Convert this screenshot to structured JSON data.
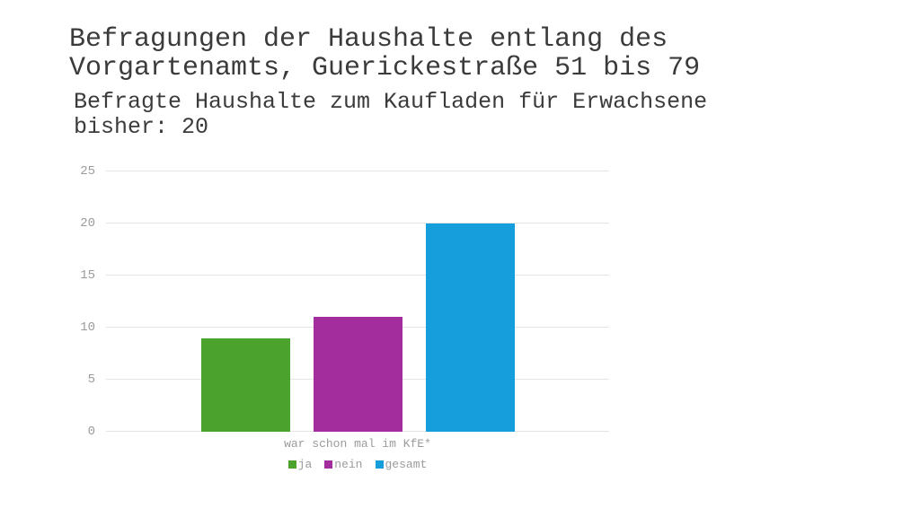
{
  "slide": {
    "title_lines": [
      "Befragungen der Haushalte entlang des",
      "Vorgartenamts, Guerickestraße 51 bis 79"
    ],
    "subtitle_lines": [
      "Befragte Haushalte zum Kaufladen für Erwachsene",
      "bisher: 20"
    ]
  },
  "chart_data": {
    "type": "bar",
    "title": "Befragte Haushalte zum Kaufladen für Erwachsene bisher: 20",
    "categories": [
      "war schon mal im KfE*"
    ],
    "series": [
      {
        "name": "ja",
        "values": [
          9
        ],
        "color": "#4ba32e"
      },
      {
        "name": "nein",
        "values": [
          11
        ],
        "color": "#a32d9c"
      },
      {
        "name": "gesamt",
        "values": [
          20
        ],
        "color": "#169ddb"
      }
    ],
    "xlabel": "war schon mal im KfE*",
    "ylabel": "",
    "ylim": [
      0,
      25
    ],
    "yticks": [
      0,
      5,
      10,
      15,
      20,
      25
    ],
    "grid": true,
    "legend": {
      "position": "bottom",
      "labels": [
        "ja",
        "nein",
        "gesamt"
      ]
    }
  },
  "colors": {
    "title_text": "#3b3b3b",
    "axis_text": "#9b9b9b",
    "gridline": "#e4e4e4",
    "background": "#ffffff"
  }
}
